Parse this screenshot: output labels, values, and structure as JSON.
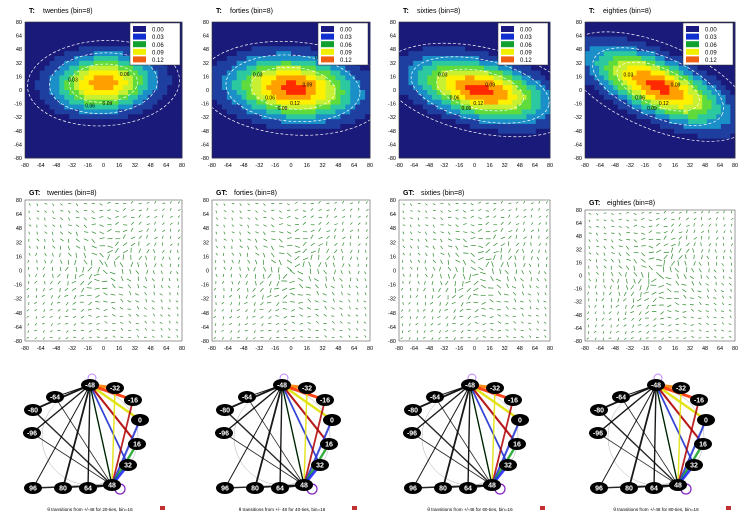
{
  "colors": {
    "scale": [
      "#1a1a80",
      "#1030d0",
      "#10a030",
      "#f0f000",
      "#f06010"
    ],
    "heat": [
      "#1a1a7a",
      "#1e3fa0",
      "#1a8fc8",
      "#2cc8a0",
      "#5fdc3c",
      "#c8f032",
      "#fff000",
      "#ffa000",
      "#ff2a00"
    ],
    "vector": "#2e8b2e"
  },
  "legend": {
    "values": [
      "0.00",
      "0.03",
      "0.06",
      "0.09",
      "0.12"
    ]
  },
  "panels": [
    {
      "prefix": "T:",
      "name": "twenties (bin=8)"
    },
    {
      "prefix": "T:",
      "name": "forties (bin=8)"
    },
    {
      "prefix": "T:",
      "name": "sixties (bin=8)"
    },
    {
      "prefix": "T:",
      "name": "eighties (bin=8)"
    }
  ],
  "gt_panels": [
    {
      "prefix": "GT:",
      "name": "twenties (bin=8)"
    },
    {
      "prefix": "GT:",
      "name": "forties (bin=8)"
    },
    {
      "prefix": "GT:",
      "name": "sixties (bin=8)"
    },
    {
      "prefix": "GT:",
      "name": "eighties (bin=8)"
    }
  ],
  "axis_ticks": [
    "-80",
    "-64",
    "-48",
    "-32",
    "-16",
    "0",
    "16",
    "32",
    "48",
    "64",
    "80"
  ],
  "y_ticks": [
    "80",
    "64",
    "48",
    "32",
    "16",
    "0",
    "-16",
    "-32",
    "-48",
    "-64",
    "-80"
  ],
  "graph_nodes": [
    "-48",
    "-32",
    "-16",
    "0",
    "16",
    "32",
    "48",
    "64",
    "80",
    "96",
    "-96",
    "-80",
    "-64"
  ],
  "graph_captions": [
    "θ transitions from +/-48 for 20-ties, bin=16",
    "θ transitions from +/- 48 for 40-ties, bin=16",
    "θ transitions from +/-48 for 60-ties, bin=16",
    "θ transitions from +/-48 for 80-ties, bin=16"
  ],
  "chart_data": [
    {
      "type": "heatmap",
      "title": "T: twenties (bin=8)",
      "xlim": [
        -80,
        80
      ],
      "ylim": [
        -80,
        80
      ],
      "legend": [
        0.0,
        0.03,
        0.06,
        0.09,
        0.12
      ],
      "contour_labels": [
        "0.03",
        "0.06",
        "0.09",
        "0.06",
        "0.03"
      ],
      "peak": {
        "x": 0,
        "y": 0,
        "value": 0.12
      }
    },
    {
      "type": "heatmap",
      "title": "T: forties (bin=8)",
      "xlim": [
        -80,
        80
      ],
      "ylim": [
        -80,
        80
      ],
      "legend": [
        0.0,
        0.03,
        0.06,
        0.09,
        0.12
      ],
      "contour_labels": [
        "0.03",
        "0.06",
        "0.09",
        "0.12",
        "0.09",
        "0.06",
        "0.03"
      ],
      "peak": {
        "x": 0,
        "y": 0,
        "value": 0.12
      }
    },
    {
      "type": "heatmap",
      "title": "T: sixties (bin=8)",
      "xlim": [
        -80,
        80
      ],
      "ylim": [
        -80,
        80
      ],
      "legend": [
        0.0,
        0.03,
        0.06,
        0.09,
        0.12
      ],
      "contour_labels": [
        "0.03",
        "0.06",
        "0.09",
        "0.12",
        "0.09",
        "0.06",
        "0.03"
      ],
      "peak": {
        "x": 0,
        "y": 0,
        "value": 0.12
      }
    },
    {
      "type": "heatmap",
      "title": "T: eighties (bin=8)",
      "xlim": [
        -80,
        80
      ],
      "ylim": [
        -80,
        80
      ],
      "legend": [
        0.0,
        0.03,
        0.06,
        0.09,
        0.12
      ],
      "contour_labels": [
        "0.03",
        "0.06",
        "0.09",
        "0.12",
        "0.09",
        "0.06",
        "0.03"
      ],
      "peak": {
        "x": -8,
        "y": 0,
        "value": 0.12
      }
    }
  ]
}
